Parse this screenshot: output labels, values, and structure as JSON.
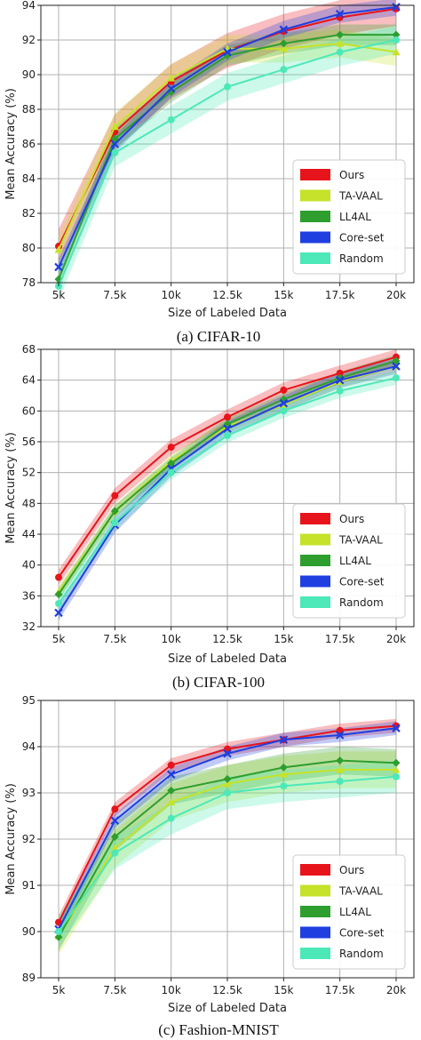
{
  "chart_data": [
    {
      "type": "line",
      "caption": "(a) CIFAR-10",
      "xlabel": "Size of Labeled Data",
      "ylabel": "Mean Accuracy (%)",
      "categories": [
        "5k",
        "7.5k",
        "10k",
        "12.5k",
        "15k",
        "17.5k",
        "20k"
      ],
      "ylim": [
        78,
        94
      ],
      "yticks": [
        78,
        80,
        82,
        84,
        86,
        88,
        90,
        92,
        94
      ],
      "grid": true,
      "legend_position": "lower-right",
      "series": [
        {
          "name": "Ours",
          "color": "#e8141b",
          "marker": "circle",
          "values": [
            80.1,
            86.7,
            89.6,
            91.4,
            92.5,
            93.3,
            93.8
          ],
          "band": 1.0
        },
        {
          "name": "TA-VAAL",
          "color": "#c6e22a",
          "marker": "triangle",
          "values": [
            79.9,
            87.0,
            89.8,
            91.5,
            91.5,
            91.8,
            91.3
          ],
          "band": 0.8
        },
        {
          "name": "LL4AL",
          "color": "#2e9e2e",
          "marker": "diamond",
          "values": [
            78.2,
            86.3,
            89.0,
            91.1,
            91.8,
            92.3,
            92.3
          ],
          "band": 0.6
        },
        {
          "name": "Core-set",
          "color": "#1f3fe0",
          "marker": "x",
          "values": [
            78.9,
            86.0,
            89.2,
            91.3,
            92.6,
            93.5,
            93.9
          ],
          "band": 0.5
        },
        {
          "name": "Random",
          "color": "#4de8b8",
          "marker": "circle",
          "values": [
            77.8,
            85.5,
            87.4,
            89.3,
            90.3,
            91.3,
            92.0
          ],
          "band": 0.8
        }
      ]
    },
    {
      "type": "line",
      "caption": "(b) CIFAR-100",
      "xlabel": "Size of Labeled Data",
      "ylabel": "Mean Accuracy (%)",
      "categories": [
        "5k",
        "7.5k",
        "10k",
        "12.5k",
        "15k",
        "17.5k",
        "20k"
      ],
      "ylim": [
        32,
        68
      ],
      "yticks": [
        32,
        36,
        40,
        44,
        48,
        52,
        56,
        60,
        64,
        68
      ],
      "grid": true,
      "legend_position": "lower-right",
      "series": [
        {
          "name": "Ours",
          "color": "#e8141b",
          "marker": "circle",
          "values": [
            38.4,
            49.0,
            55.3,
            59.2,
            62.7,
            64.9,
            67.0
          ],
          "band": 1.0
        },
        {
          "name": "TA-VAAL",
          "color": "#c6e22a",
          "marker": "triangle",
          "values": [
            36.5,
            47.0,
            53.5,
            58.0,
            60.8,
            63.8,
            65.8
          ],
          "band": 0.8
        },
        {
          "name": "LL4AL",
          "color": "#2e9e2e",
          "marker": "diamond",
          "values": [
            36.2,
            47.0,
            53.2,
            58.3,
            61.5,
            64.3,
            66.5
          ],
          "band": 0.8
        },
        {
          "name": "Core-set",
          "color": "#1f3fe0",
          "marker": "x",
          "values": [
            33.8,
            45.2,
            52.5,
            57.7,
            61.0,
            64.0,
            65.8
          ],
          "band": 1.0
        },
        {
          "name": "Random",
          "color": "#4de8b8",
          "marker": "circle",
          "values": [
            35.0,
            45.5,
            52.0,
            56.8,
            60.0,
            62.6,
            64.3
          ],
          "band": 0.9
        }
      ]
    },
    {
      "type": "line",
      "caption": "(c) Fashion-MNIST",
      "xlabel": "Size of Labeled Data",
      "ylabel": "Mean Accuracy (%)",
      "categories": [
        "5k",
        "7.5k",
        "10k",
        "12.5k",
        "15k",
        "17.5k",
        "20k"
      ],
      "ylim": [
        89,
        95
      ],
      "yticks": [
        89,
        90,
        91,
        92,
        93,
        94,
        95
      ],
      "grid": true,
      "legend_position": "lower-right",
      "series": [
        {
          "name": "Ours",
          "color": "#e8141b",
          "marker": "circle",
          "values": [
            90.2,
            92.65,
            93.6,
            93.95,
            94.15,
            94.35,
            94.45
          ],
          "band": 0.15
        },
        {
          "name": "TA-VAAL",
          "color": "#c6e22a",
          "marker": "triangle",
          "values": [
            89.9,
            91.8,
            92.8,
            93.2,
            93.4,
            93.5,
            93.5
          ],
          "band": 0.4
        },
        {
          "name": "LL4AL",
          "color": "#2e9e2e",
          "marker": "diamond",
          "values": [
            89.88,
            92.05,
            93.05,
            93.3,
            93.55,
            93.7,
            93.65
          ],
          "band": 0.3
        },
        {
          "name": "Core-set",
          "color": "#1f3fe0",
          "marker": "x",
          "values": [
            90.05,
            92.4,
            93.4,
            93.85,
            94.15,
            94.25,
            94.4
          ],
          "band": 0.15
        },
        {
          "name": "Random",
          "color": "#4de8b8",
          "marker": "circle",
          "values": [
            90.0,
            91.7,
            92.45,
            93.0,
            93.15,
            93.25,
            93.35
          ],
          "band": 0.35
        }
      ]
    }
  ]
}
